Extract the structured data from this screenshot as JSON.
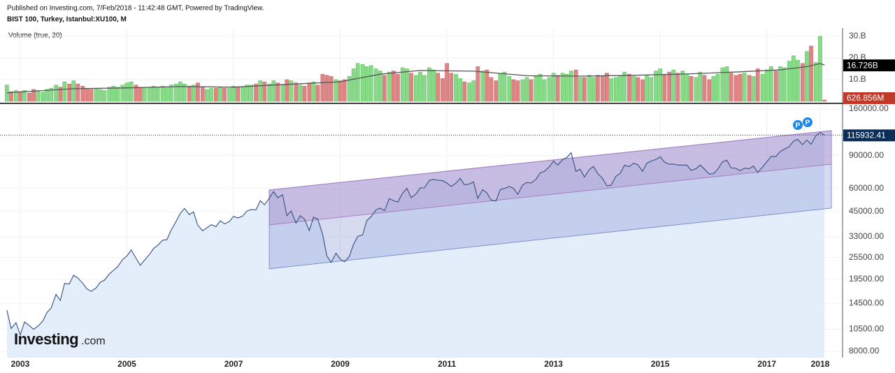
{
  "header": {
    "published": "Published on Investing.com, 7/Feb/2018 - 11:42:48 GMT, Powered by TradingView."
  },
  "logo": {
    "main": "Investing",
    "suffix": ".com"
  },
  "chart_data": {
    "type": "line",
    "title": "BIST 100, Turkey, Istanbul:XU100, M",
    "x": [
      2002.75,
      2002.83,
      2002.92,
      2003,
      2003.08,
      2003.17,
      2003.25,
      2003.33,
      2003.42,
      2003.5,
      2003.58,
      2003.67,
      2003.75,
      2003.83,
      2003.92,
      2004,
      2004.08,
      2004.17,
      2004.25,
      2004.33,
      2004.42,
      2004.5,
      2004.58,
      2004.67,
      2004.75,
      2004.83,
      2004.92,
      2005,
      2005.08,
      2005.17,
      2005.25,
      2005.33,
      2005.42,
      2005.5,
      2005.58,
      2005.67,
      2005.75,
      2005.83,
      2005.92,
      2006,
      2006.08,
      2006.17,
      2006.25,
      2006.33,
      2006.42,
      2006.5,
      2006.58,
      2006.67,
      2006.75,
      2006.83,
      2006.92,
      2007,
      2007.08,
      2007.17,
      2007.25,
      2007.33,
      2007.42,
      2007.5,
      2007.58,
      2007.67,
      2007.75,
      2007.83,
      2007.92,
      2008,
      2008.08,
      2008.17,
      2008.25,
      2008.33,
      2008.42,
      2008.5,
      2008.58,
      2008.67,
      2008.75,
      2008.83,
      2008.92,
      2009,
      2009.08,
      2009.17,
      2009.25,
      2009.33,
      2009.42,
      2009.5,
      2009.58,
      2009.67,
      2009.75,
      2009.83,
      2009.92,
      2010,
      2010.08,
      2010.17,
      2010.25,
      2010.33,
      2010.42,
      2010.5,
      2010.58,
      2010.67,
      2010.75,
      2010.83,
      2010.92,
      2011,
      2011.08,
      2011.17,
      2011.25,
      2011.33,
      2011.42,
      2011.5,
      2011.58,
      2011.67,
      2011.75,
      2011.83,
      2011.92,
      2012,
      2012.08,
      2012.17,
      2012.25,
      2012.33,
      2012.42,
      2012.5,
      2012.58,
      2012.67,
      2012.75,
      2012.83,
      2012.92,
      2013,
      2013.08,
      2013.17,
      2013.25,
      2013.33,
      2013.42,
      2013.5,
      2013.58,
      2013.67,
      2013.75,
      2013.83,
      2013.92,
      2014,
      2014.08,
      2014.17,
      2014.25,
      2014.33,
      2014.42,
      2014.5,
      2014.58,
      2014.67,
      2014.75,
      2014.83,
      2014.92,
      2015,
      2015.08,
      2015.17,
      2015.25,
      2015.33,
      2015.42,
      2015.5,
      2015.58,
      2015.67,
      2015.75,
      2015.83,
      2015.92,
      2016,
      2016.08,
      2016.17,
      2016.25,
      2016.33,
      2016.42,
      2016.5,
      2016.58,
      2016.67,
      2016.75,
      2016.83,
      2016.92,
      2017,
      2017.08,
      2017.17,
      2017.25,
      2017.33,
      2017.42,
      2017.5,
      2017.58,
      2017.67,
      2017.75,
      2017.83,
      2017.92,
      2018,
      2018.08
    ],
    "values": [
      13300,
      10600,
      11400,
      9800,
      11500,
      11000,
      10500,
      10900,
      11600,
      12900,
      13700,
      16200,
      15000,
      18500,
      18400,
      20500,
      19800,
      18600,
      17300,
      16800,
      17500,
      18800,
      19300,
      20800,
      21800,
      22800,
      24900,
      26000,
      28000,
      25300,
      23200,
      24700,
      26400,
      28500,
      29700,
      31600,
      31800,
      35800,
      39800,
      44000,
      46800,
      43400,
      44800,
      38000,
      35500,
      36800,
      38300,
      37400,
      40200,
      38700,
      39800,
      42400,
      41600,
      42600,
      45300,
      46200,
      46000,
      51500,
      49000,
      53100,
      57600,
      53400,
      55500,
      42800,
      45400,
      39000,
      42800,
      41000,
      35600,
      42000,
      41000,
      34000,
      26000,
      24000,
      26900,
      25000,
      24200,
      25800,
      30000,
      33200,
      33700,
      40400,
      42300,
      46000,
      47000,
      45500,
      52800,
      51500,
      50600,
      56500,
      60000,
      53500,
      56000,
      60300,
      60400,
      66200,
      67000,
      66300,
      66000,
      64000,
      61500,
      64000,
      67900,
      62700,
      63300,
      65000,
      53000,
      59000,
      56800,
      51900,
      51300,
      59000,
      60000,
      61300,
      60000,
      55700,
      62500,
      64500,
      64000,
      67000,
      72600,
      74000,
      78200,
      84000,
      80000,
      85500,
      88000,
      93200,
      74000,
      76000,
      69000,
      75700,
      78600,
      72000,
      67800,
      61900,
      62400,
      69700,
      72100,
      79700,
      78500,
      81800,
      80400,
      74000,
      81900,
      84000,
      85700,
      88600,
      83000,
      80800,
      81000,
      80000,
      80000,
      80000,
      75000,
      76500,
      80000,
      76000,
      71700,
      72000,
      76000,
      83300,
      85000,
      77200,
      76800,
      74600,
      77000,
      76500,
      79000,
      73000,
      78100,
      83300,
      89000,
      88900,
      94600,
      97500,
      100400,
      107500,
      110000,
      102900,
      109000,
      103500,
      115300,
      119500,
      115932.41
    ],
    "color": "#34507f",
    "fill": "#e4eefa",
    "log_scale": true,
    "grid": true,
    "xlim": [
      2002.62,
      2018.42
    ],
    "xticks": [
      2003,
      2005,
      2007,
      2009,
      2011,
      2013,
      2015,
      2017,
      2018
    ],
    "ylim": [
      7400,
      170000
    ],
    "yticks": [
      {
        "value": 8000,
        "label": "8000.00"
      },
      {
        "value": 10500,
        "label": "10500.00"
      },
      {
        "value": 14500,
        "label": "14500.00"
      },
      {
        "value": 19500,
        "label": "19500.00"
      },
      {
        "value": 25500,
        "label": "25500.00"
      },
      {
        "value": 33000,
        "label": "33000.00"
      },
      {
        "value": 45000,
        "label": "45000.00"
      },
      {
        "value": 60000,
        "label": "60000.00"
      },
      {
        "value": 90000,
        "label": "90000.00"
      },
      {
        "value": 160000,
        "label": "160000.00"
      }
    ],
    "channels": [
      {
        "x": [
          2007.67,
          2018.21
        ],
        "upper": [
          58800,
          122400
        ],
        "lower": [
          22200,
          47000
        ],
        "color": "#7f8fd0"
      },
      {
        "x": [
          2007.67,
          2018.21
        ],
        "upper": [
          58800,
          122400
        ],
        "lower": [
          38200,
          80900
        ],
        "color": "#a77fc4"
      }
    ],
    "event_markers": [
      "P",
      "P"
    ],
    "volume": {
      "title": "Volume (true, 20)",
      "values": [
        7.5,
        4.5,
        5.0,
        4.5,
        5.0,
        3.8,
        5.5,
        5.0,
        4.2,
        5.5,
        6.0,
        7.5,
        6.5,
        9.0,
        8.0,
        9.5,
        8.0,
        7.0,
        6.0,
        5.5,
        6.0,
        5.5,
        5.0,
        6.5,
        7.0,
        6.5,
        7.5,
        8.5,
        9.0,
        7.5,
        6.5,
        6.0,
        6.5,
        7.0,
        6.5,
        7.0,
        6.5,
        7.5,
        8.0,
        9.0,
        8.0,
        7.0,
        7.5,
        8.5,
        6.5,
        5.5,
        6.0,
        6.0,
        6.5,
        6.0,
        6.0,
        7.0,
        6.5,
        6.5,
        7.5,
        7.5,
        8.0,
        9.5,
        9.0,
        8.0,
        9.5,
        8.5,
        7.5,
        10.0,
        9.5,
        8.5,
        7.5,
        7.0,
        8.5,
        9.0,
        7.5,
        12.5,
        12.0,
        11.5,
        10.0,
        9.5,
        10.0,
        11.5,
        15.0,
        17.5,
        17.0,
        16.0,
        16.5,
        15.0,
        14.0,
        12.0,
        13.5,
        14.0,
        12.5,
        15.5,
        15.0,
        13.0,
        12.0,
        13.5,
        12.0,
        15.5,
        14.5,
        13.0,
        10.5,
        17.5,
        13.0,
        12.5,
        10.5,
        9.0,
        8.5,
        9.5,
        16.0,
        14.0,
        14.5,
        11.0,
        9.5,
        13.0,
        13.5,
        11.5,
        10.0,
        9.5,
        10.0,
        11.0,
        10.0,
        11.5,
        12.5,
        10.0,
        11.0,
        13.0,
        12.0,
        13.0,
        12.5,
        14.0,
        14.5,
        11.0,
        11.0,
        12.0,
        11.0,
        12.0,
        11.5,
        13.0,
        10.5,
        11.0,
        12.0,
        13.5,
        12.5,
        11.5,
        11.0,
        10.0,
        12.0,
        11.0,
        14.0,
        15.0,
        12.5,
        13.5,
        14.5,
        13.0,
        14.0,
        12.5,
        11.5,
        11.0,
        13.5,
        12.0,
        10.0,
        11.5,
        12.5,
        15.5,
        16.0,
        13.0,
        12.0,
        12.5,
        13.0,
        12.0,
        11.5,
        15.0,
        12.5,
        14.5,
        16.0,
        14.0,
        16.0,
        15.5,
        18.5,
        21.0,
        19.0,
        17.5,
        23.0,
        25.5,
        18.0,
        30.0,
        0.626856
      ],
      "last_label": "626.856M",
      "up_color": "#86dc86",
      "down_color": "#dd8585",
      "ylim": [
        0,
        33.2
      ],
      "yticks": [
        {
          "value": 10,
          "label": "10.B"
        },
        {
          "value": 20,
          "label": "20.B"
        },
        {
          "value": 30,
          "label": "30.B"
        }
      ],
      "ma": {
        "x": [
          2002.75,
          2004,
          2005,
          2006,
          2007,
          2008,
          2009,
          2009.75,
          2010.5,
          2011.5,
          2012.5,
          2013.5,
          2014.5,
          2015.5,
          2016.5,
          2017.25,
          2017.75,
          2018,
          2018.08
        ],
        "values": [
          3.9,
          5.8,
          6.2,
          6.8,
          6.5,
          7.8,
          9.0,
          12.5,
          14.2,
          13.9,
          11.8,
          11.6,
          12.0,
          12.6,
          13.6,
          14.5,
          16.0,
          17.4,
          16.726
        ],
        "color": "#555555",
        "last_label": "16.726B"
      }
    }
  }
}
